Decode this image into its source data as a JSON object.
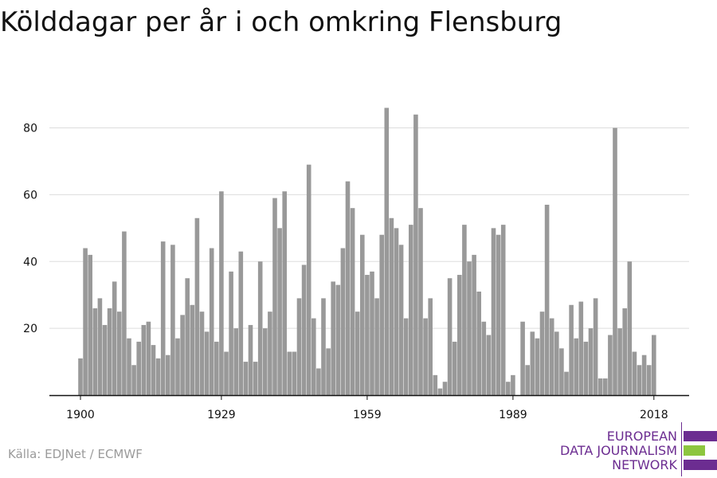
{
  "title": "Kölddagar per år i och omkring Flensburg",
  "source": "Källa: EDJNet / ECMWF",
  "logo": {
    "lines": [
      "EUROPEAN",
      "DATA JOURNALISM",
      "NETWORK"
    ],
    "colors": {
      "purple": "#6c2d91",
      "green": "#8dc63f"
    }
  },
  "colors": {
    "bar": "#999999",
    "grid": "#dddddd",
    "axis": "#111111"
  },
  "chart_data": {
    "type": "bar",
    "xlabel": "",
    "ylabel": "",
    "ylim": [
      0,
      88
    ],
    "y_ticks": [
      20,
      40,
      60,
      80
    ],
    "x_ticks": [
      1900,
      1929,
      1959,
      1989,
      2018
    ],
    "grid": true,
    "categories": [
      1900,
      1901,
      1902,
      1903,
      1904,
      1905,
      1906,
      1907,
      1908,
      1909,
      1910,
      1911,
      1912,
      1913,
      1914,
      1915,
      1916,
      1917,
      1918,
      1919,
      1920,
      1921,
      1922,
      1923,
      1924,
      1925,
      1926,
      1927,
      1928,
      1929,
      1930,
      1931,
      1932,
      1933,
      1934,
      1935,
      1936,
      1937,
      1938,
      1939,
      1940,
      1941,
      1942,
      1943,
      1944,
      1945,
      1946,
      1947,
      1948,
      1949,
      1950,
      1951,
      1952,
      1953,
      1954,
      1955,
      1956,
      1957,
      1958,
      1959,
      1960,
      1961,
      1962,
      1963,
      1964,
      1965,
      1966,
      1967,
      1968,
      1969,
      1970,
      1971,
      1972,
      1973,
      1974,
      1975,
      1976,
      1977,
      1978,
      1979,
      1980,
      1981,
      1982,
      1983,
      1984,
      1985,
      1986,
      1987,
      1988,
      1989,
      1990,
      1991,
      1992,
      1993,
      1994,
      1995,
      1996,
      1997,
      1998,
      1999,
      2000,
      2001,
      2002,
      2003,
      2004,
      2005,
      2006,
      2007,
      2008,
      2009,
      2010,
      2011,
      2012,
      2013,
      2014,
      2015,
      2016,
      2017,
      2018
    ],
    "values": [
      11,
      44,
      42,
      26,
      29,
      21,
      26,
      34,
      25,
      49,
      17,
      9,
      16,
      21,
      22,
      15,
      11,
      46,
      12,
      45,
      17,
      24,
      35,
      27,
      53,
      25,
      19,
      44,
      16,
      61,
      13,
      37,
      20,
      43,
      10,
      21,
      10,
      40,
      20,
      25,
      59,
      50,
      61,
      13,
      13,
      29,
      39,
      69,
      23,
      8,
      29,
      14,
      34,
      33,
      44,
      64,
      56,
      25,
      48,
      36,
      37,
      29,
      48,
      86,
      53,
      50,
      45,
      23,
      51,
      84,
      56,
      23,
      29,
      6,
      2,
      4,
      35,
      16,
      36,
      51,
      40,
      42,
      31,
      22,
      18,
      50,
      48,
      51,
      4,
      6,
      0,
      22,
      9,
      19,
      17,
      25,
      57,
      23,
      19,
      14,
      7,
      27,
      17,
      28,
      16,
      20,
      29,
      5,
      5,
      18,
      80,
      20,
      26,
      40,
      13,
      9,
      12,
      9,
      18
    ]
  }
}
